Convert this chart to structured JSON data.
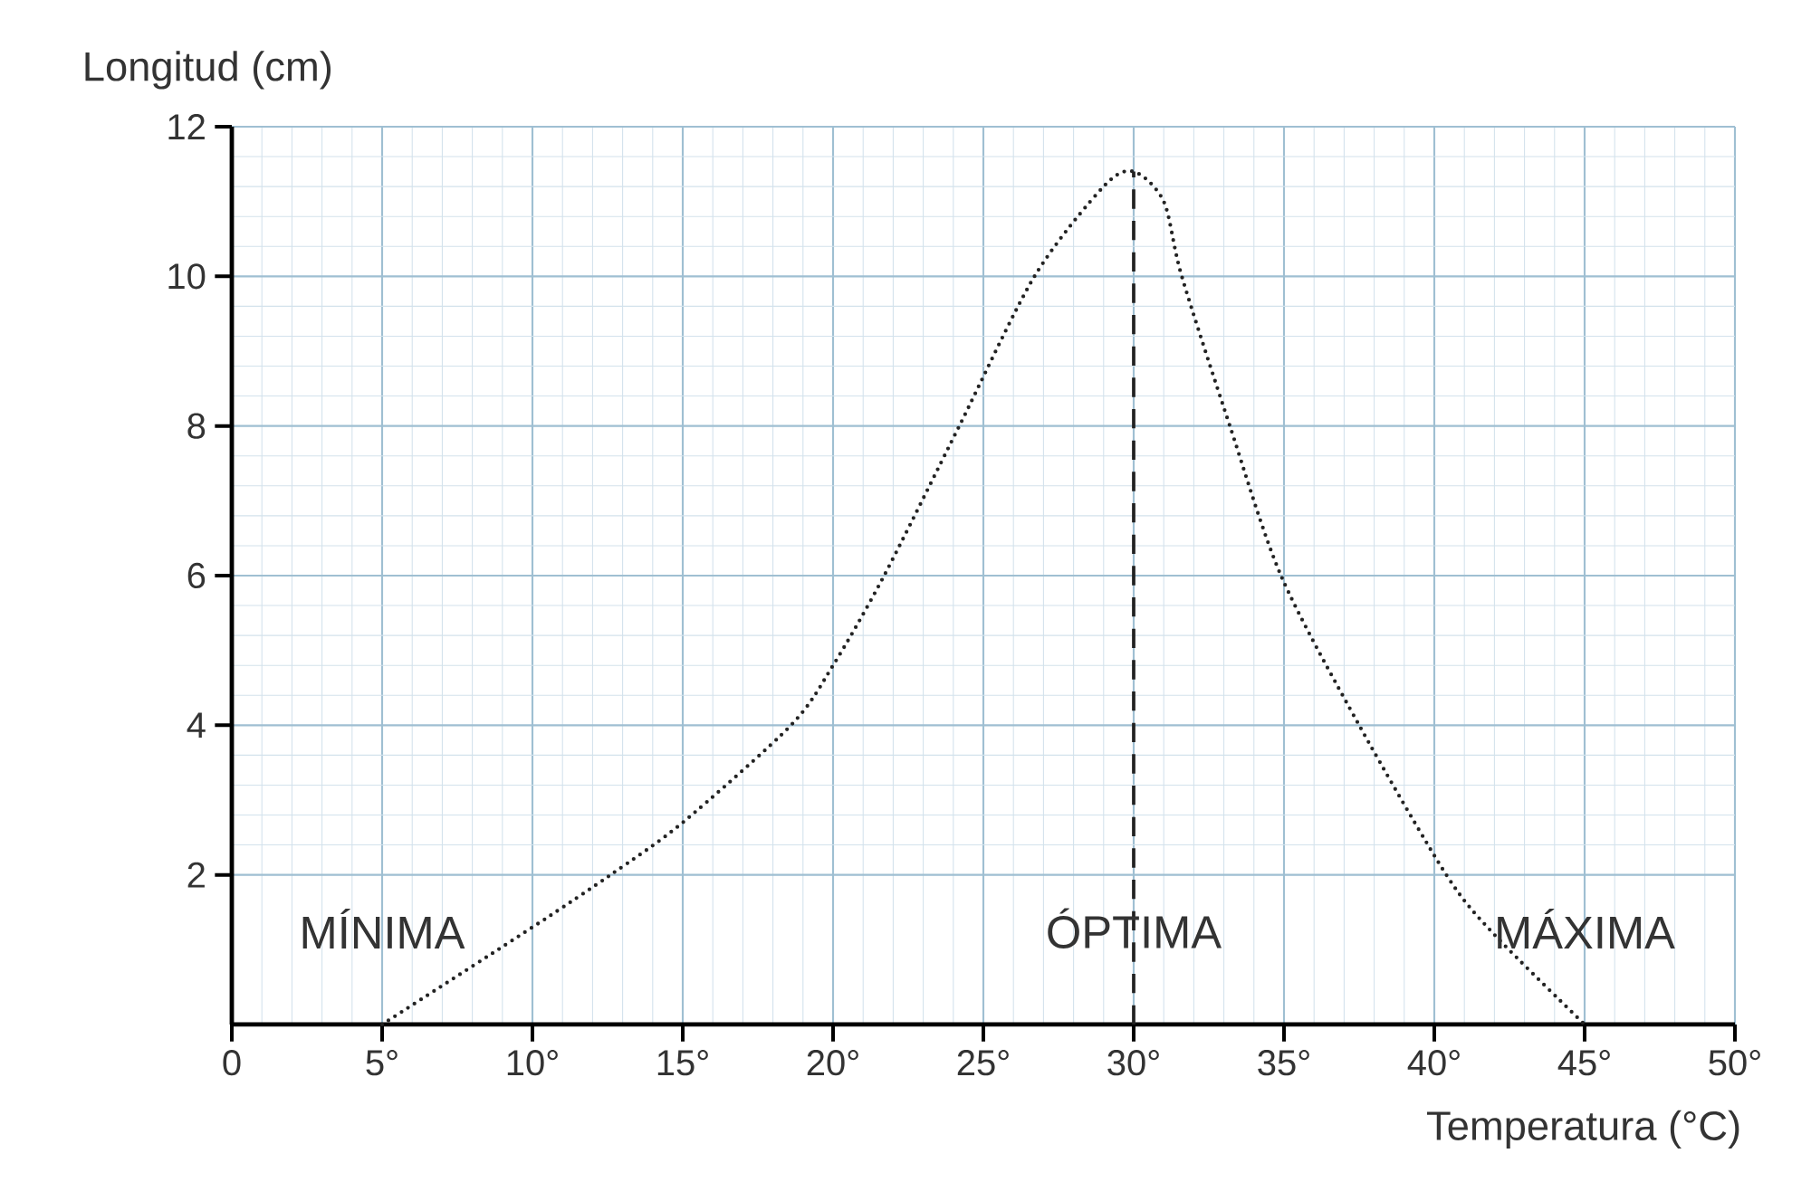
{
  "chart_data": {
    "type": "line",
    "xlabel": "Temperatura (°C)",
    "ylabel": "Longitud (cm)",
    "x": [
      5,
      10,
      12.6,
      15,
      18.6,
      20,
      21.7,
      24.2,
      26.7,
      29,
      30,
      31,
      31.6,
      33.2,
      34.9,
      37.5,
      40.4,
      42,
      45
    ],
    "series": [
      {
        "color": "#222222",
        "values": [
          0,
          1.3,
          2,
          2.7,
          4,
          4.8,
          6,
          8,
          10,
          11.2,
          11.4,
          11,
          10,
          8,
          6,
          4,
          2,
          1.2,
          0
        ]
      }
    ],
    "xlim": [
      0,
      50
    ],
    "ylim": [
      0,
      12
    ],
    "xticks": [
      0,
      {
        "value": 5,
        "label": "5°"
      },
      {
        "value": 10,
        "label": "10°"
      },
      {
        "value": 15,
        "label": "15°"
      },
      {
        "value": 20,
        "label": "20°"
      },
      {
        "value": 25,
        "label": "25°"
      },
      {
        "value": 30,
        "label": "30°"
      },
      {
        "value": 35,
        "label": "35°"
      },
      {
        "value": 40,
        "label": "40°"
      },
      {
        "value": 45,
        "label": "45°"
      },
      {
        "value": 50,
        "label": "50°"
      }
    ],
    "yticks": [
      2,
      4,
      6,
      8,
      10,
      12
    ],
    "grid": true,
    "marker": "none",
    "line_style": "dotted",
    "ref_lines": [
      {
        "axis": "x",
        "value": 30,
        "line_style": "dashed",
        "color": "#222222"
      }
    ],
    "annotations": [
      {
        "text": "MÍNIMA",
        "x": 5,
        "y": 0
      },
      {
        "text": "ÓPTIMA",
        "x": 30,
        "y": 0
      },
      {
        "text": "MÁXIMA",
        "x": 45,
        "y": 0
      }
    ]
  }
}
